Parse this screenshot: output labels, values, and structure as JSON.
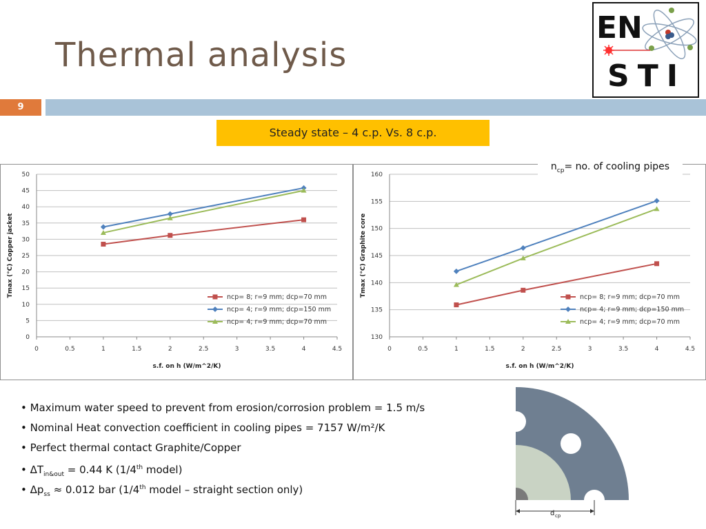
{
  "slide": {
    "title": "Thermal analysis",
    "number": "9"
  },
  "logo": {
    "line1": "EN",
    "line2": "STI"
  },
  "banner": "Steady state – 4 c.p. Vs. 8 c.p.",
  "note": {
    "n": "n",
    "sub": "cp",
    "rest": "= no. of cooling pipes"
  },
  "bullets": {
    "b1": "• Maximum water speed to prevent from erosion/corrosion problem = 1.5 m/s",
    "b2": "• Nominal Heat convection coefficient in cooling pipes = 7157 W/m²/K",
    "b3": "• Perfect thermal contact Graphite/Copper",
    "b4_pre": "• ΔT",
    "b4_sub": "in&out",
    "b4_mid": " = 0.44 K (1/4",
    "b4_sup": "th",
    "b4_post": " model)",
    "b5_pre": "• Δp",
    "b5_sub": "ss",
    "b5_mid": " ≈ 0.012 bar (1/4",
    "b5_sup": "th",
    "b5_post": " model – straight section only)"
  },
  "diagram": {
    "label": "d",
    "label_sub": "cp"
  },
  "colors": {
    "red": "#c0504d",
    "blue": "#4f81bd",
    "green": "#9bbb59"
  },
  "chart_data": [
    {
      "type": "line",
      "xlabel": "s.f. on h (W/m^2/K)",
      "ylabel": "Tmax (°C) Copper jacket",
      "xlim": [
        0,
        4.5
      ],
      "ylim": [
        0,
        50
      ],
      "xticks": [
        "0",
        "0.5",
        "1",
        "1.5",
        "2",
        "2.5",
        "3",
        "3.5",
        "4",
        "4.5"
      ],
      "yticks": [
        "0",
        "5",
        "10",
        "15",
        "20",
        "25",
        "30",
        "35",
        "40",
        "45",
        "50"
      ],
      "legend": "bottom-right",
      "series": [
        {
          "name": "ncp= 8; r=9 mm; dcp=70 mm",
          "x": [
            1,
            2,
            4
          ],
          "values": [
            28.5,
            31.2,
            36
          ],
          "color": "#c0504d",
          "marker": "square"
        },
        {
          "name": "ncp= 4; r=9 mm; dcp=150 mm",
          "x": [
            1,
            2,
            4
          ],
          "values": [
            33.8,
            37.8,
            45.8
          ],
          "color": "#4f81bd",
          "marker": "diamond"
        },
        {
          "name": "ncp= 4; r=9 mm; dcp=70 mm",
          "x": [
            1,
            2,
            4
          ],
          "values": [
            32,
            36.5,
            45
          ],
          "color": "#9bbb59",
          "marker": "triangle"
        }
      ]
    },
    {
      "type": "line",
      "xlabel": "s.f. on h (W/m^2/K)",
      "ylabel": "Tmax (°C) Graphite core",
      "xlim": [
        0,
        4.5
      ],
      "ylim": [
        130,
        160
      ],
      "xticks": [
        "0",
        "0.5",
        "1",
        "1.5",
        "2",
        "2.5",
        "3",
        "3.5",
        "4",
        "4.5"
      ],
      "yticks": [
        "130",
        "135",
        "140",
        "145",
        "150",
        "155",
        "160"
      ],
      "legend": "bottom-right",
      "series": [
        {
          "name": "ncp= 8; r=9 mm; dcp=70 mm",
          "x": [
            1,
            2,
            4
          ],
          "values": [
            135.9,
            138.6,
            143.5
          ],
          "color": "#c0504d",
          "marker": "square"
        },
        {
          "name": "ncp= 4; r=9 mm; dcp=150 mm",
          "x": [
            1,
            2,
            4
          ],
          "values": [
            142.1,
            146.4,
            155.1
          ],
          "color": "#4f81bd",
          "marker": "diamond"
        },
        {
          "name": "ncp= 4; r=9 mm; dcp=70 mm",
          "x": [
            1,
            2,
            4
          ],
          "values": [
            139.6,
            144.5,
            153.6
          ],
          "color": "#9bbb59",
          "marker": "triangle"
        }
      ]
    }
  ]
}
